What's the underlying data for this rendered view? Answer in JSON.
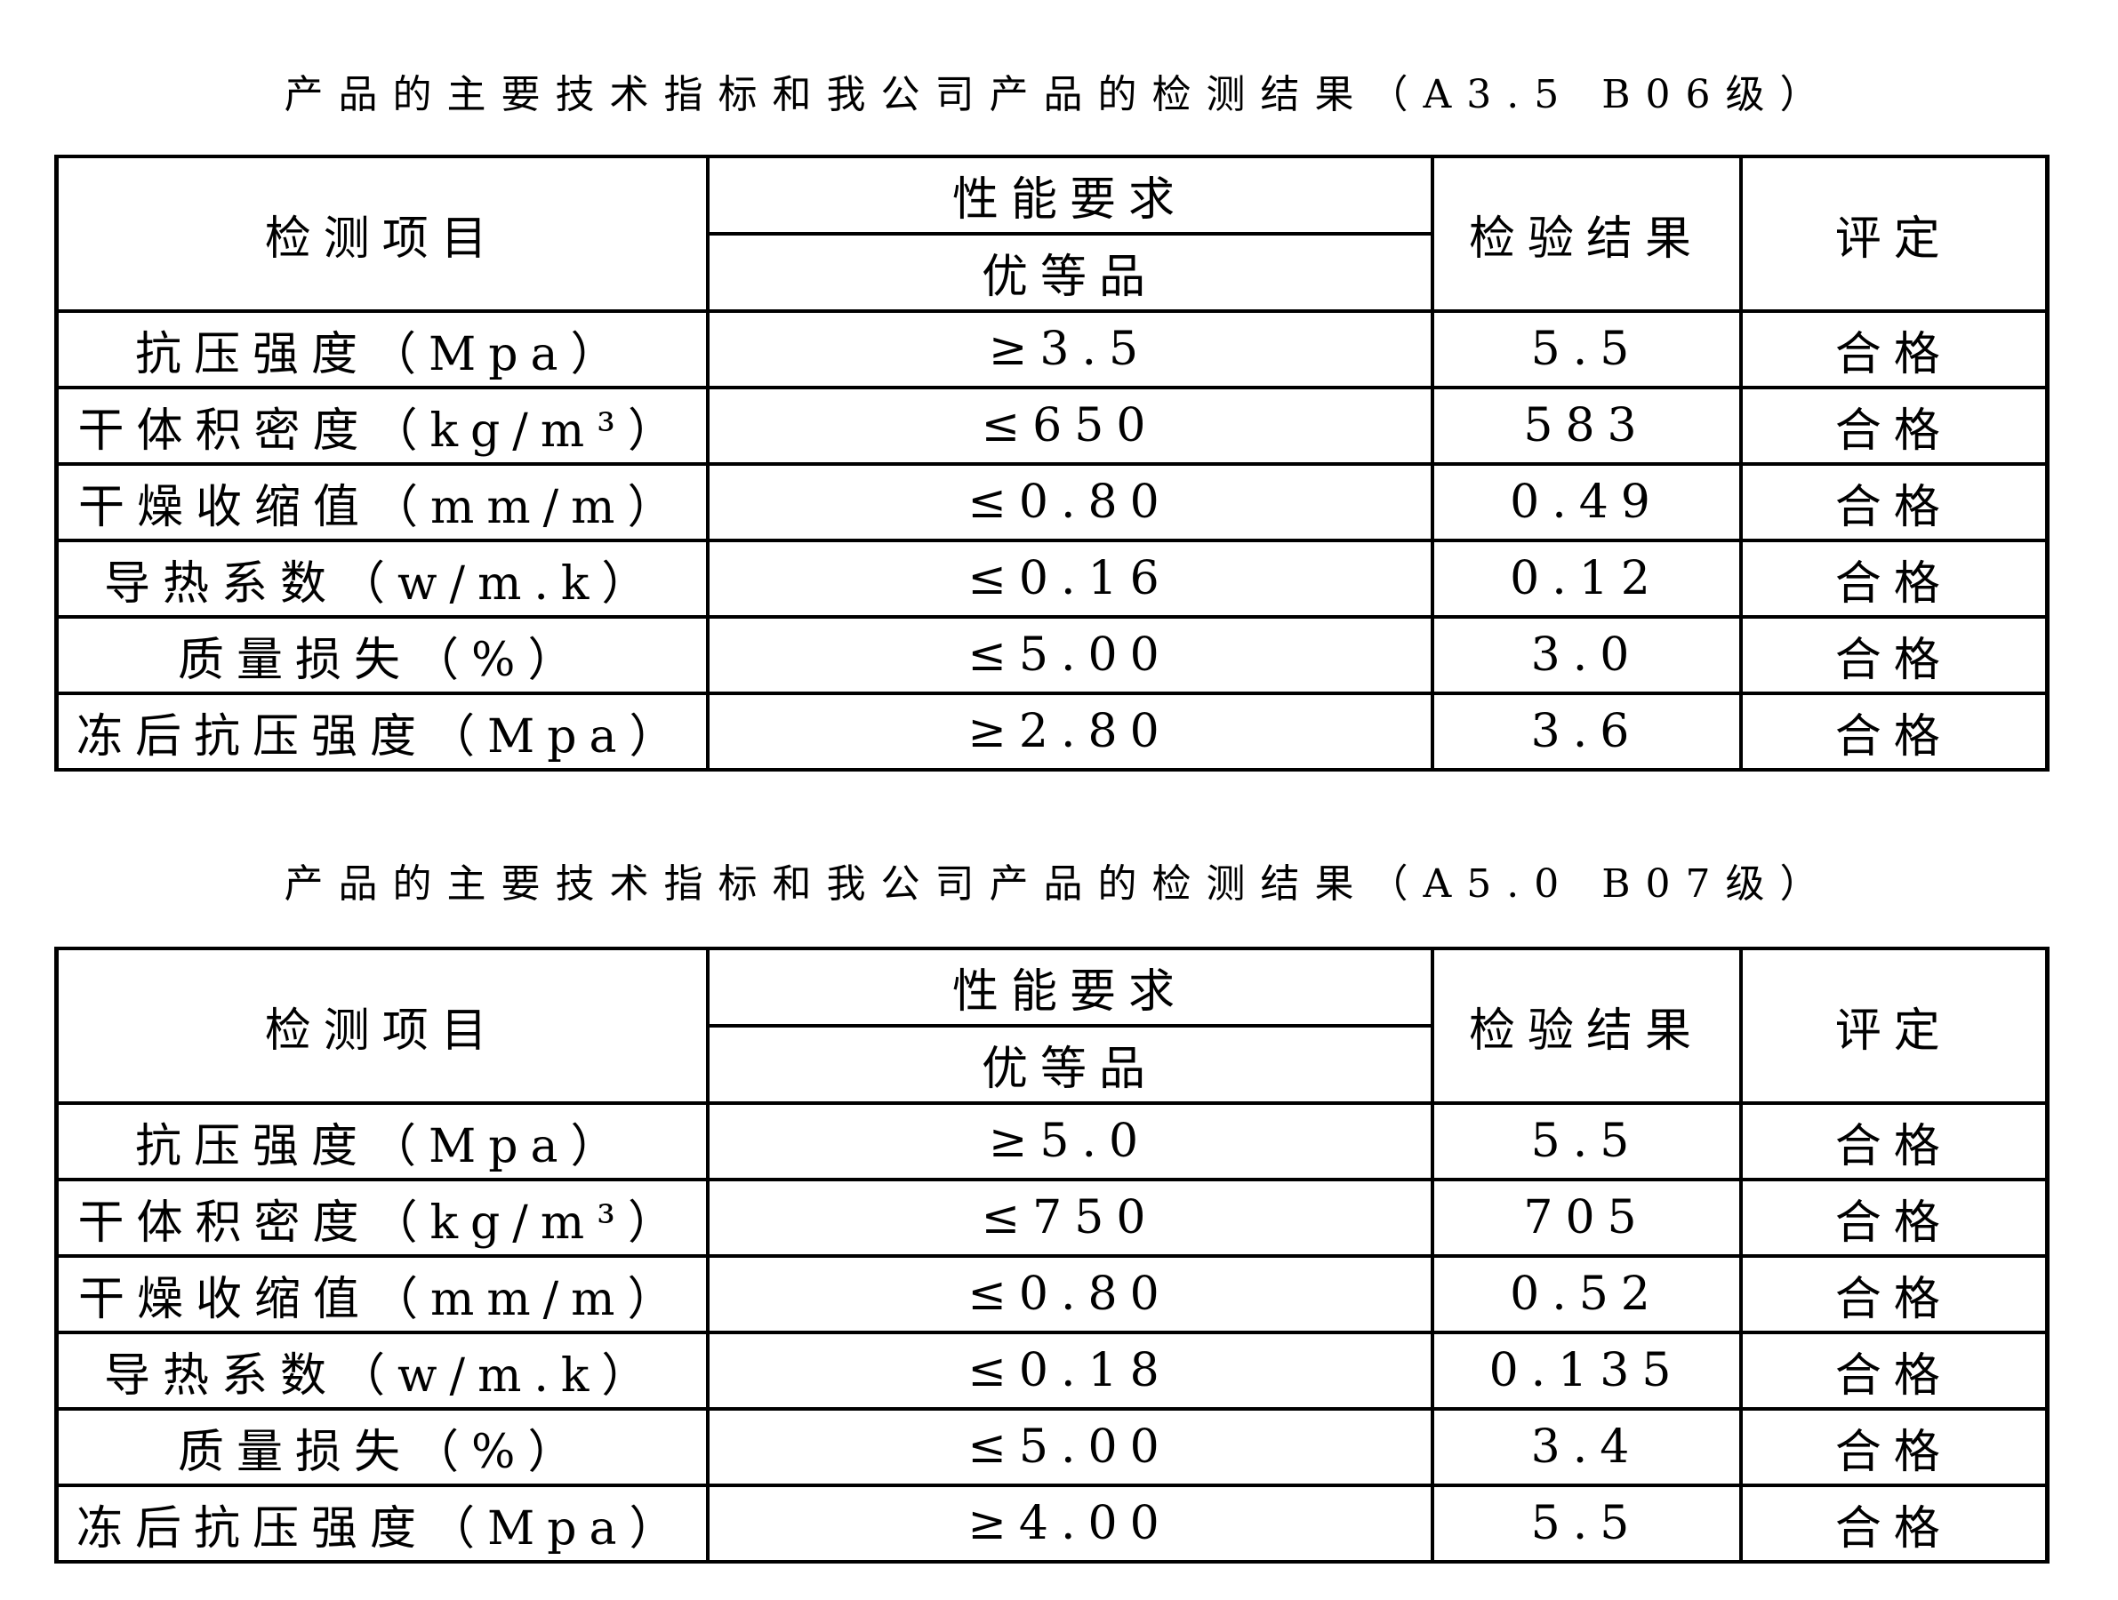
{
  "tables": [
    {
      "title": "产品的主要技术指标和我公司产品的检测结果（A3.5 B06级）",
      "headers": {
        "item": "检测项目",
        "requirement": "性能要求",
        "grade": "优等品",
        "result": "检验结果",
        "evaluation": "评定"
      },
      "rows": [
        {
          "item": "抗压强度（Mpa）",
          "requirement": "≥3.5",
          "result": "5.5",
          "evaluation": "合格"
        },
        {
          "item": "干体积密度（kg/m³）",
          "requirement": "≤650",
          "result": "583",
          "evaluation": "合格"
        },
        {
          "item": "干燥收缩值（mm/m）",
          "requirement": "≤0.80",
          "result": "0.49",
          "evaluation": "合格"
        },
        {
          "item": "导热系数（w/m.k）",
          "requirement": "≤0.16",
          "result": "0.12",
          "evaluation": "合格"
        },
        {
          "item": "质量损失（%）",
          "requirement": "≤5.00",
          "result": "3.0",
          "evaluation": "合格"
        },
        {
          "item": "冻后抗压强度（Mpa）",
          "requirement": "≥2.80",
          "result": "3.6",
          "evaluation": "合格"
        }
      ]
    },
    {
      "title": "产品的主要技术指标和我公司产品的检测结果（A5.0 B07级）",
      "headers": {
        "item": "检测项目",
        "requirement": "性能要求",
        "grade": "优等品",
        "result": "检验结果",
        "evaluation": "评定"
      },
      "rows": [
        {
          "item": "抗压强度（Mpa）",
          "requirement": "≥5.0",
          "result": "5.5",
          "evaluation": "合格"
        },
        {
          "item": "干体积密度（kg/m³）",
          "requirement": "≤750",
          "result": "705",
          "evaluation": "合格"
        },
        {
          "item": "干燥收缩值（mm/m）",
          "requirement": "≤0.80",
          "result": "0.52",
          "evaluation": "合格"
        },
        {
          "item": "导热系数（w/m.k）",
          "requirement": "≤0.18",
          "result": "0.135",
          "evaluation": "合格"
        },
        {
          "item": "质量损失（%）",
          "requirement": "≤5.00",
          "result": "3.4",
          "evaluation": "合格"
        },
        {
          "item": "冻后抗压强度（Mpa）",
          "requirement": "≥4.00",
          "result": "5.5",
          "evaluation": "合格"
        }
      ]
    }
  ]
}
